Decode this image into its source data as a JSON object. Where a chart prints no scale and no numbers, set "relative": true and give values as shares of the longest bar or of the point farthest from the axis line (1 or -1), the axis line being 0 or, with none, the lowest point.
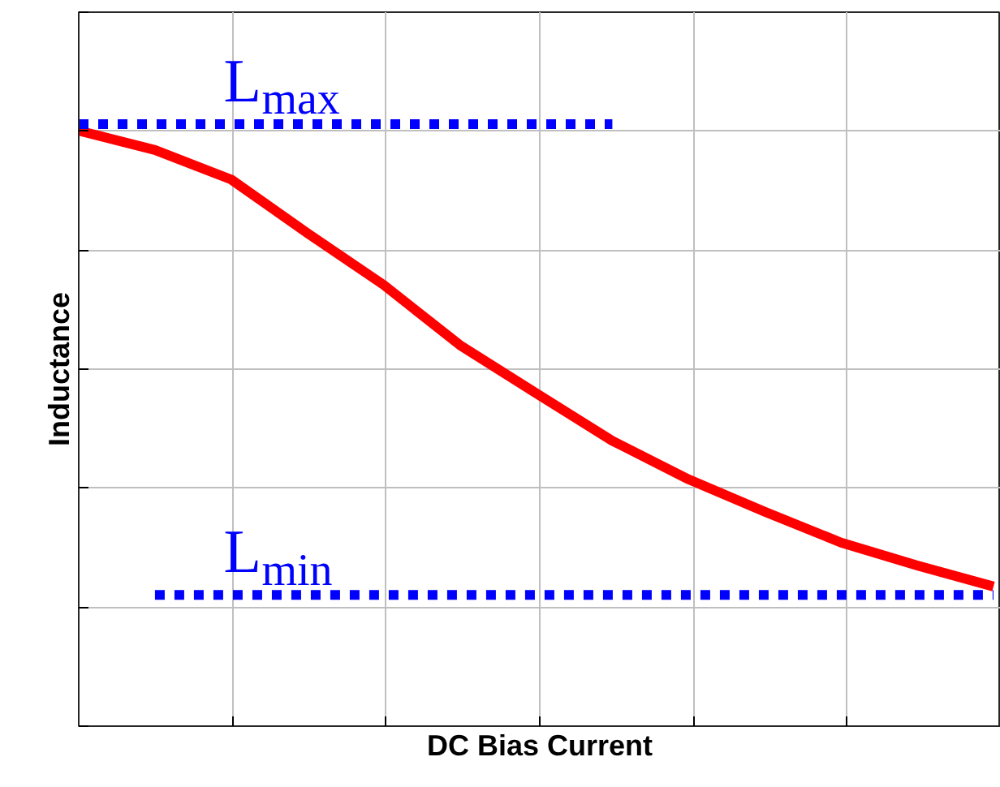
{
  "chart_data": {
    "type": "line",
    "relative": true,
    "xlabel": "DC Bias Current",
    "ylabel": "Inductance",
    "grid": true,
    "categories": [
      null,
      null,
      null,
      null,
      null,
      null,
      null,
      null,
      null,
      null,
      null,
      null,
      null
    ],
    "series": [
      {
        "color": "#ff0000",
        "line_style": "solid",
        "values": [
          0.989,
          0.957,
          0.908,
          0.819,
          0.733,
          0.633,
          0.553,
          0.474,
          0.41,
          0.356,
          0.305,
          0.267,
          0.232
        ]
      },
      {
        "name": "L$_{max}$",
        "color": "#0000ff",
        "line_style": "dotted",
        "values": [
          1,
          1,
          1,
          1,
          1,
          1,
          1,
          1,
          null,
          null,
          null,
          null,
          null
        ]
      },
      {
        "name": "L$_{min}$",
        "color": "#0000ff",
        "line_style": "dotted",
        "values": [
          null,
          0.218,
          0.218,
          0.218,
          0.218,
          0.218,
          0.218,
          0.218,
          0.218,
          0.218,
          0.218,
          0.218,
          0.218
        ]
      }
    ]
  }
}
